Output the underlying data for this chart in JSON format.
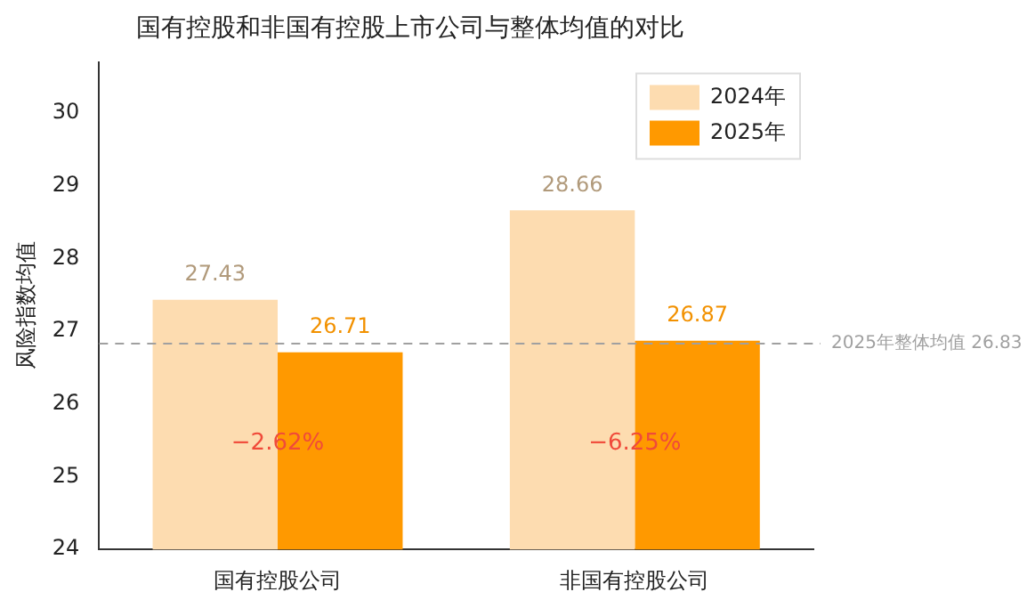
{
  "chart_data": {
    "type": "bar",
    "title": "国有控股和非国有控股上市公司与整体均值的对比",
    "ylabel": "风险指数均值",
    "categories": [
      "国有控股公司",
      "非国有控股公司"
    ],
    "series": [
      {
        "name": "2024年",
        "color": "#fddcb0",
        "values": [
          27.43,
          28.66
        ]
      },
      {
        "name": "2025年",
        "color": "#ff9900",
        "values": [
          26.71,
          26.87
        ]
      }
    ],
    "ylim": [
      24,
      30.7
    ],
    "yticks": [
      24,
      25,
      26,
      27,
      28,
      29,
      30
    ],
    "grid": false,
    "legend": "top right",
    "data_labels": true,
    "ref_lines": [
      {
        "axis": "y",
        "value": 26.83,
        "label": "2025年整体均值 26.83",
        "color": "#a0a0a0",
        "line_style": "dashed"
      }
    ],
    "annotations": [
      {
        "text": "−2.62%",
        "x": "国有控股公司",
        "y": 25.45
      },
      {
        "text": "−6.25%",
        "x": "非国有控股公司",
        "y": 25.45
      }
    ]
  }
}
